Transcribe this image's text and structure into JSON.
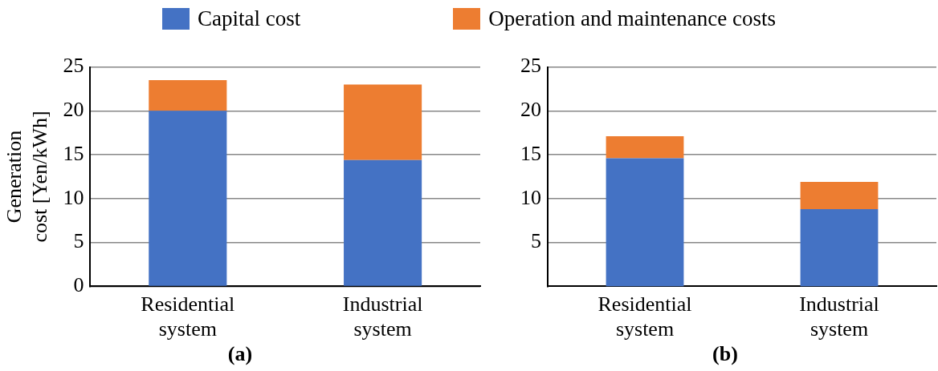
{
  "chart_data": [
    {
      "type": "bar",
      "title": "(a)",
      "ylabel": "Generation cost [Yen/kWh]",
      "categories": [
        "Residential system",
        "Industrial system"
      ],
      "stacked": true,
      "ylim": [
        0,
        25
      ],
      "yticks": [
        0,
        5,
        10,
        15,
        20,
        25
      ],
      "grid": "y",
      "legend": "top",
      "series": [
        {
          "name": "Capital cost",
          "color": "#4472c4",
          "values": [
            20,
            14.4
          ]
        },
        {
          "name": "Operation and maintenance costs",
          "color": "#ed7d31",
          "values": [
            3.5,
            8.6
          ]
        }
      ]
    },
    {
      "type": "bar",
      "title": "(b)",
      "categories": [
        "Residential system",
        "Industrial system"
      ],
      "stacked": true,
      "ylim": [
        0,
        25
      ],
      "yticks": [
        5,
        10,
        15,
        20,
        25
      ],
      "grid": "y",
      "series": [
        {
          "color": "#4472c4",
          "values": [
            14.6,
            8.8
          ]
        },
        {
          "color": "#ed7d31",
          "values": [
            2.5,
            3.1
          ]
        }
      ]
    }
  ]
}
